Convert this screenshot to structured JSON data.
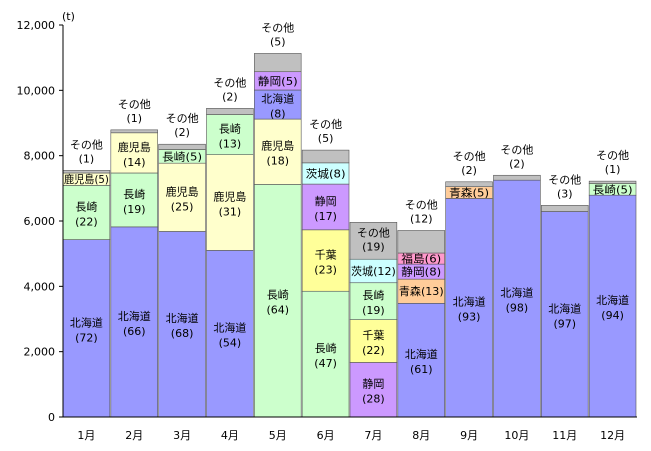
{
  "chart_data": {
    "type": "bar",
    "stacked": true,
    "unit": "(t)",
    "ylim": [
      0,
      12000
    ],
    "yticks": [
      "0",
      "2,000",
      "4,000",
      "6,000",
      "8,000",
      "10,000",
      "12,000"
    ],
    "ytick_values": [
      0,
      2000,
      4000,
      6000,
      8000,
      10000,
      12000
    ],
    "categories": [
      "1月",
      "2月",
      "3月",
      "4月",
      "5月",
      "6月",
      "7月",
      "8月",
      "9月",
      "10月",
      "11月",
      "12月"
    ],
    "colors": {
      "北海道": "#9999ff",
      "長崎": "#ccffcc",
      "鹿児島": "#ffffcc",
      "静岡": "#cc99ff",
      "千葉": "#ffff99",
      "茨城": "#ccffff",
      "青森": "#ffcc99",
      "福島": "#ff99cc",
      "その他": "#c0c0c0"
    },
    "bars": [
      {
        "month": "1月",
        "segments": [
          {
            "name": "北海道",
            "label": "北海道",
            "pct": "(72)",
            "value": 5430
          },
          {
            "name": "長崎",
            "label": "長崎",
            "pct": "(22)",
            "value": 1660
          },
          {
            "name": "鹿児島",
            "label": "鹿児島",
            "pct": "(5)",
            "value": 380,
            "inline": true
          },
          {
            "name": "その他",
            "label": "その他",
            "pct": "(1)",
            "value": 80,
            "above": true
          }
        ]
      },
      {
        "month": "2月",
        "segments": [
          {
            "name": "北海道",
            "label": "北海道",
            "pct": "(66)",
            "value": 5820
          },
          {
            "name": "長崎",
            "label": "長崎",
            "pct": "(19)",
            "value": 1650
          },
          {
            "name": "鹿児島",
            "label": "鹿児島",
            "pct": "(14)",
            "value": 1230
          },
          {
            "name": "その他",
            "label": "その他",
            "pct": "(1)",
            "value": 90,
            "above": true
          }
        ]
      },
      {
        "month": "3月",
        "segments": [
          {
            "name": "北海道",
            "label": "北海道",
            "pct": "(68)",
            "value": 5680
          },
          {
            "name": "鹿児島",
            "label": "鹿児島",
            "pct": "(25)",
            "value": 2090
          },
          {
            "name": "長崎",
            "label": "長崎",
            "pct": "(5)",
            "value": 420,
            "inline": true
          },
          {
            "name": "その他",
            "label": "その他",
            "pct": "(2)",
            "value": 160,
            "above": true
          }
        ]
      },
      {
        "month": "4月",
        "segments": [
          {
            "name": "北海道",
            "label": "北海道",
            "pct": "(54)",
            "value": 5100
          },
          {
            "name": "鹿児島",
            "label": "鹿児島",
            "pct": "(31)",
            "value": 2930
          },
          {
            "name": "長崎",
            "label": "長崎",
            "pct": "(13)",
            "value": 1230
          },
          {
            "name": "その他",
            "label": "その他",
            "pct": "(2)",
            "value": 190,
            "above": true
          }
        ]
      },
      {
        "month": "5月",
        "segments": [
          {
            "name": "長崎",
            "label": "長崎",
            "pct": "(64)",
            "value": 7120
          },
          {
            "name": "鹿児島",
            "label": "鹿児島",
            "pct": "(18)",
            "value": 2000
          },
          {
            "name": "北海道",
            "label": "北海道",
            "pct": "(8)",
            "value": 890
          },
          {
            "name": "静岡",
            "label": "静岡",
            "pct": "(5)",
            "value": 560,
            "inline": true
          },
          {
            "name": "その他",
            "label": "その他",
            "pct": "(5)",
            "value": 560,
            "above": true
          }
        ]
      },
      {
        "month": "6月",
        "segments": [
          {
            "name": "長崎",
            "label": "長崎",
            "pct": "(47)",
            "value": 3850
          },
          {
            "name": "千葉",
            "label": "千葉",
            "pct": "(23)",
            "value": 1880
          },
          {
            "name": "静岡",
            "label": "静岡",
            "pct": "(17)",
            "value": 1400
          },
          {
            "name": "茨城",
            "label": "茨城",
            "pct": "(8)",
            "value": 650,
            "inline": true
          },
          {
            "name": "その他",
            "label": "その他",
            "pct": "(5)",
            "value": 390,
            "above": true
          }
        ]
      },
      {
        "month": "7月",
        "segments": [
          {
            "name": "静岡",
            "label": "静岡",
            "pct": "(28)",
            "value": 1670
          },
          {
            "name": "千葉",
            "label": "千葉",
            "pct": "(22)",
            "value": 1310
          },
          {
            "name": "長崎",
            "label": "長崎",
            "pct": "(19)",
            "value": 1130
          },
          {
            "name": "茨城",
            "label": "茨城",
            "pct": "(12)",
            "value": 720,
            "inline": true
          },
          {
            "name": "その他",
            "label": "その他",
            "pct": "(19)",
            "value": 1130,
            "inside_top": true
          }
        ]
      },
      {
        "month": "8月",
        "segments": [
          {
            "name": "北海道",
            "label": "北海道",
            "pct": "(61)",
            "value": 3480
          },
          {
            "name": "青森",
            "label": "青森",
            "pct": "(13)",
            "value": 740,
            "inline": true
          },
          {
            "name": "静岡",
            "label": "静岡",
            "pct": "(8)",
            "value": 460,
            "inline": true
          },
          {
            "name": "福島",
            "label": "福島",
            "pct": "(6)",
            "value": 340,
            "inline": true
          },
          {
            "name": "その他",
            "label": "その他",
            "pct": "(12)",
            "value": 690,
            "above": true
          }
        ]
      },
      {
        "month": "9月",
        "segments": [
          {
            "name": "北海道",
            "label": "北海道",
            "pct": "(93)",
            "value": 6690
          },
          {
            "name": "青森",
            "label": "青森",
            "pct": "(5)",
            "value": 360,
            "inline": true
          },
          {
            "name": "その他",
            "label": "その他",
            "pct": "(2)",
            "value": 150,
            "above": true
          }
        ]
      },
      {
        "month": "10月",
        "segments": [
          {
            "name": "北海道",
            "label": "北海道",
            "pct": "(98)",
            "value": 7250
          },
          {
            "name": "その他",
            "label": "その他",
            "pct": "(2)",
            "value": 150,
            "above": true
          }
        ]
      },
      {
        "month": "11月",
        "segments": [
          {
            "name": "北海道",
            "label": "北海道",
            "pct": "(97)",
            "value": 6290
          },
          {
            "name": "その他",
            "label": "その他",
            "pct": "(3)",
            "value": 190,
            "above": true
          }
        ]
      },
      {
        "month": "12月",
        "segments": [
          {
            "name": "北海道",
            "label": "北海道",
            "pct": "(94)",
            "value": 6790
          },
          {
            "name": "長崎",
            "label": "長崎",
            "pct": "(5)",
            "value": 360,
            "inline": true
          },
          {
            "name": "その他",
            "label": "その他",
            "pct": "(1)",
            "value": 70,
            "above": true
          }
        ]
      }
    ]
  }
}
